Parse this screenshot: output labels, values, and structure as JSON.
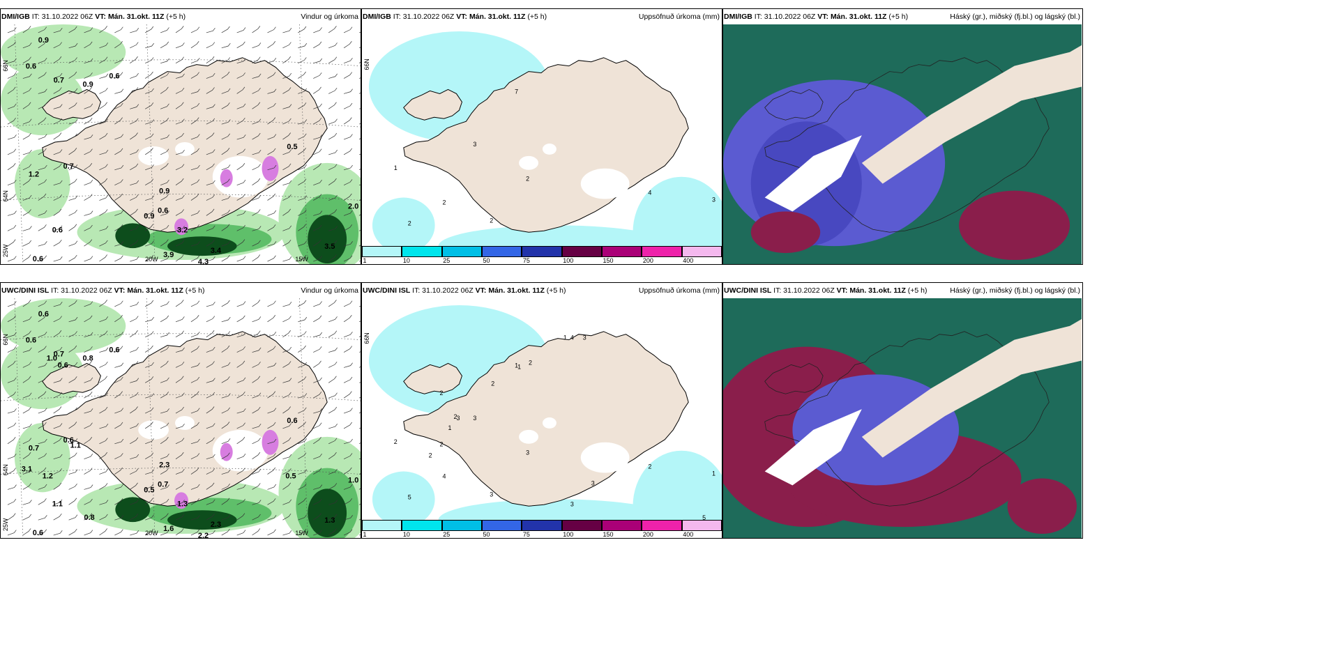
{
  "panels": [
    {
      "model": "DMI/IGB",
      "it": "IT: 31.10.2022 06Z",
      "vt_label": "VT:",
      "vt": "Mán. 31.okt. 11Z",
      "lead": "(+5 h)",
      "title": "Vindur og úrkoma",
      "labels": [
        "0.9",
        "0.6",
        "0.7",
        "0.9",
        "0.6",
        "0.7",
        "1.2",
        "0.5",
        "0.9",
        "0.9",
        "0.6",
        "0.6",
        "2.0",
        "3.5",
        "3.9",
        "4.3",
        "3.4",
        "3.2",
        "0.6"
      ],
      "axis": [
        "66N",
        "64N",
        "25W",
        "20W",
        "15W"
      ]
    },
    {
      "model": "DMI/IGB",
      "it": "IT: 31.10.2022 06Z",
      "vt_label": "VT:",
      "vt": "Mán. 31.okt. 11Z",
      "lead": "(+5 h)",
      "title": "Uppsöfnuð úrkoma (mm)",
      "labels": [
        "7",
        "3",
        "2",
        "1",
        "2",
        "2",
        "4",
        "3",
        "2"
      ],
      "axis": [
        "66N"
      ]
    },
    {
      "model": "DMI/IGB",
      "it": "IT: 31.10.2022 06Z",
      "vt_label": "VT:",
      "vt": "Mán. 31.okt. 11Z",
      "lead": "(+5 h)",
      "title": "Háský (gr.), miðský (fj.bl.) og lágský (bl.)",
      "labels": [],
      "axis": []
    },
    {
      "model": "UWC/DINI ISL",
      "it": "IT: 31.10.2022 06Z",
      "vt_label": "VT:",
      "vt": "Mán. 31.okt. 11Z",
      "lead": "(+5 h)",
      "title": "Vindur og úrkoma",
      "labels": [
        "0.6",
        "0.6",
        "0.7",
        "0.8",
        "0.6",
        "0.6",
        "0.7",
        "0.6",
        "2.3",
        "0.5",
        "1.1",
        "0.6",
        "1.0",
        "1.3",
        "1.6",
        "2.2",
        "2.3",
        "1.3",
        "0.7",
        "1.1",
        "0.8",
        "1.0",
        "0.6",
        "3.1",
        "1.2",
        "0.5"
      ],
      "axis": [
        "66N",
        "64N",
        "25W",
        "20W",
        "15W"
      ]
    },
    {
      "model": "UWC/DINI ISL",
      "it": "IT: 31.10.2022 06Z",
      "vt_label": "VT:",
      "vt": "Mán. 31.okt. 11Z",
      "lead": "(+5 h)",
      "title": "Uppsöfnuð úrkoma (mm)",
      "labels": [
        "1",
        "3",
        "3",
        "2",
        "4",
        "5",
        "2",
        "1",
        "3",
        "2",
        "2",
        "1",
        "4",
        "3",
        "2",
        "1",
        "2",
        "3",
        "1",
        "2",
        "2",
        "3",
        "3",
        "5"
      ],
      "axis": [
        "66N"
      ]
    },
    {
      "model": "UWC/DINI ISL",
      "it": "IT: 31.10.2022 06Z",
      "vt_label": "VT:",
      "vt": "Mán. 31.okt. 11Z",
      "lead": "(+5 h)",
      "title": "Háský (gr.), miðský (fj.bl.) og lágský (bl.)",
      "labels": [],
      "axis": []
    }
  ],
  "colorbar": {
    "ticks": [
      "1",
      "10",
      "25",
      "50",
      "75",
      "100",
      "150",
      "200",
      "400"
    ],
    "colors": [
      "#b4f6f8",
      "#00e5ec",
      "#00bfe6",
      "#3366e6",
      "#2233aa",
      "#660044",
      "#aa0077",
      "#ee22aa",
      "#f4b8ee"
    ]
  },
  "colors": {
    "land": "#efe3d7",
    "precip_light": "#b8e8b4",
    "precip_mid": "#5fbf6a",
    "precip_heavy": "#0d4d1c",
    "accum": "#b4f6f8",
    "cloud_high": "#1e6b5a",
    "cloud_mid": "#5b5bd1",
    "cloud_low": "#8a1e4b"
  }
}
